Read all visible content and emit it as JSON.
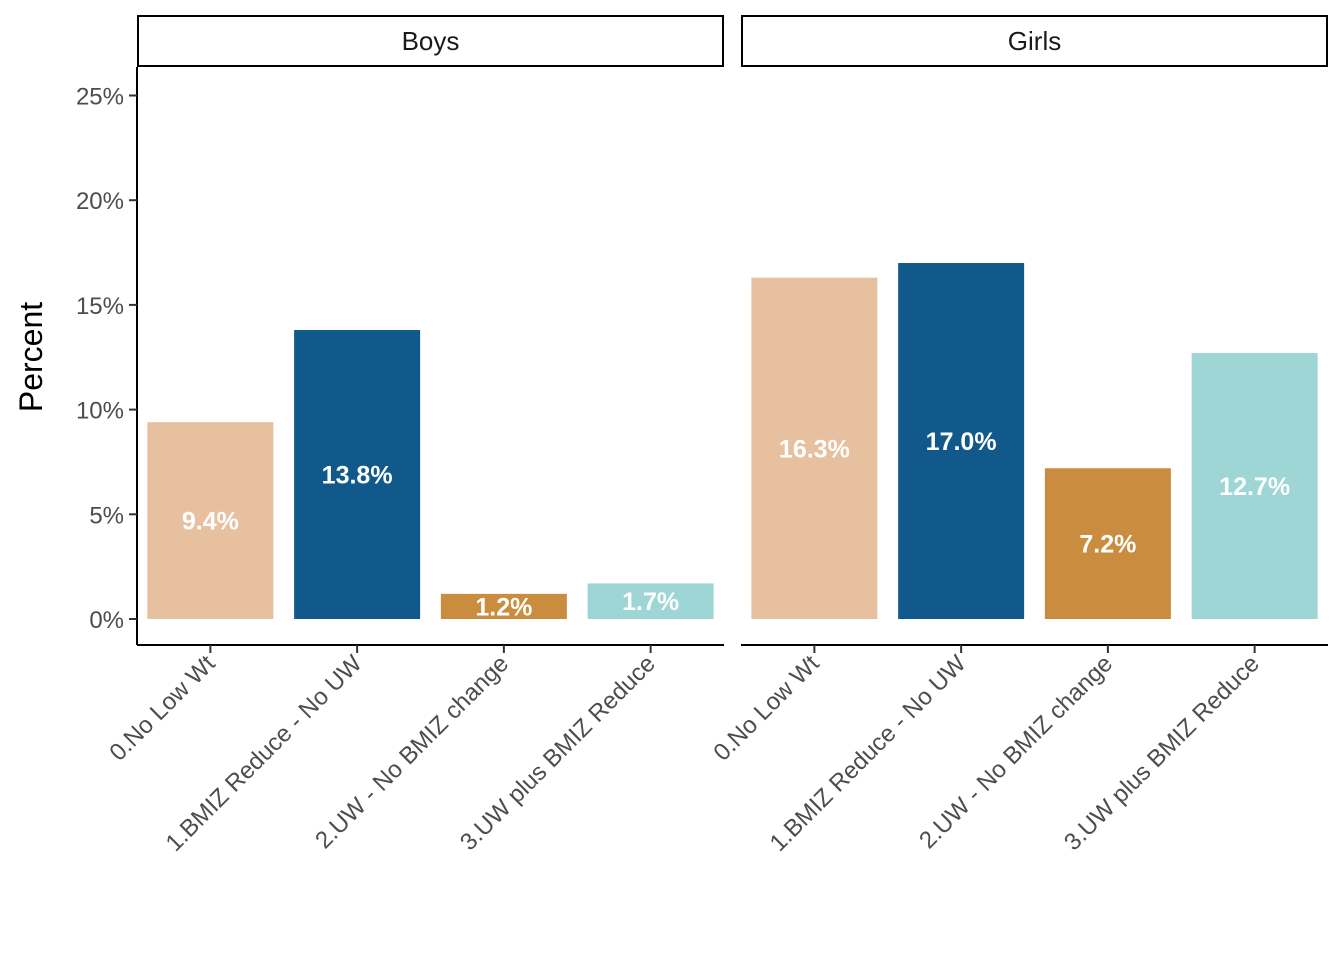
{
  "chart_data": {
    "type": "bar",
    "ylabel": "Percent",
    "xlabel": "",
    "ylim": [
      0,
      25
    ],
    "yticks": [
      "0%",
      "5%",
      "10%",
      "15%",
      "20%",
      "25%"
    ],
    "ytick_values": [
      0,
      5,
      10,
      15,
      20,
      25
    ],
    "categories": [
      "0.No Low Wt",
      "1.BMIZ Reduce - No UW",
      "2.UW - No BMIZ change",
      "3.UW plus BMIZ Reduce"
    ],
    "colors": [
      "#E6C09F",
      "#10598A",
      "#CA8D3F",
      "#9ED6D6"
    ],
    "legend": "none",
    "grid": false,
    "panels": [
      {
        "name": "Boys",
        "values": [
          9.4,
          13.8,
          1.2,
          1.7
        ],
        "labels": [
          "9.4%",
          "13.8%",
          "1.2%",
          "1.7%"
        ]
      },
      {
        "name": "Girls",
        "values": [
          16.3,
          17.0,
          7.2,
          12.7
        ],
        "labels": [
          "16.3%",
          "17.0%",
          "7.2%",
          "12.7%"
        ]
      }
    ]
  }
}
